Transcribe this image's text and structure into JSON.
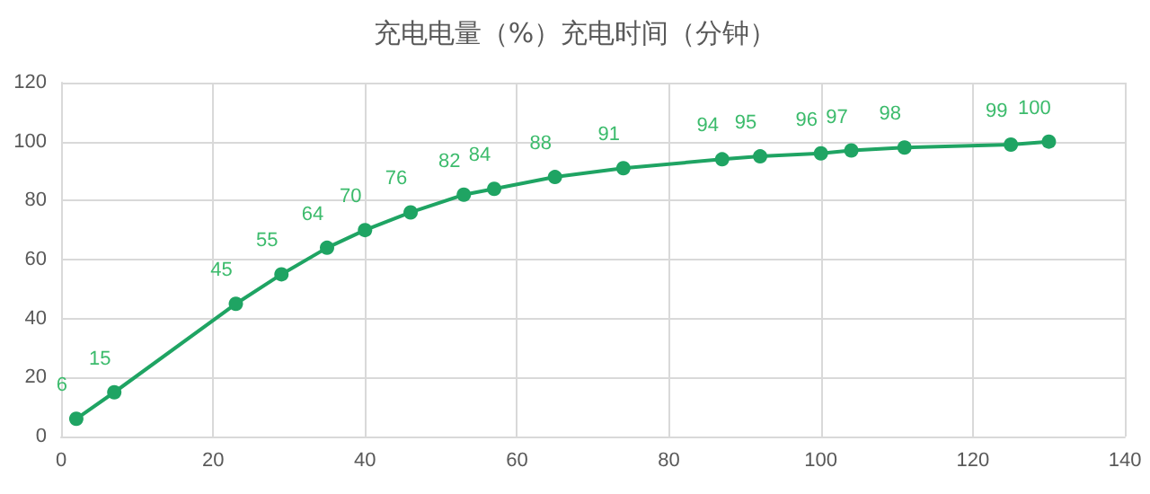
{
  "chart_data": {
    "type": "line",
    "title": "充电电量（%）充电时间（分钟）",
    "x": [
      2,
      7,
      23,
      29,
      35,
      40,
      46,
      53,
      57,
      65,
      74,
      87,
      92,
      100,
      104,
      111,
      125,
      130
    ],
    "values": [
      6,
      15,
      45,
      55,
      64,
      70,
      76,
      82,
      84,
      88,
      91,
      94,
      95,
      96,
      97,
      98,
      99,
      100
    ],
    "color": "#1fa463",
    "data_labels": true,
    "marker": "circle",
    "line_style": "solid",
    "grid": true,
    "xlim": [
      0,
      140
    ],
    "xticks": [
      0,
      20,
      40,
      60,
      80,
      100,
      120,
      140
    ],
    "ylim": [
      0,
      120
    ],
    "yticks": [
      0,
      20,
      40,
      60,
      80,
      100,
      120
    ]
  }
}
